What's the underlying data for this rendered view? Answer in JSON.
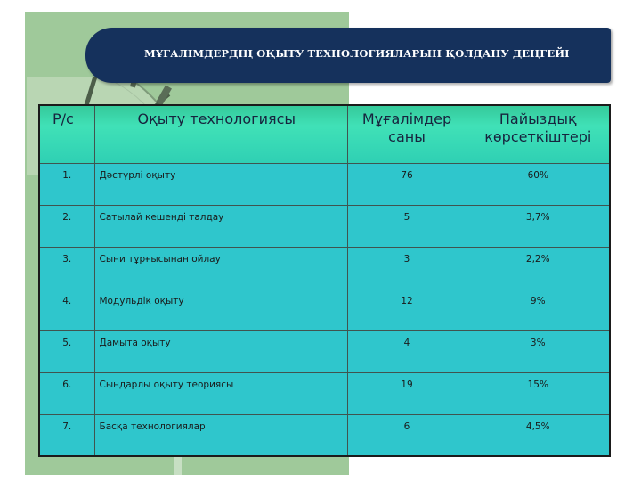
{
  "slide": {
    "title": "МҰҒАЛІМДЕРДІҢ ОҚЫТУ ТЕХНОЛОГИЯЛАРЫН ҚОЛДАНУ ДЕҢГЕЙІ"
  },
  "table": {
    "headers": [
      "Р/с",
      "Оқыту технологиясы",
      "Мұғалімдер саны",
      "Пайыздық көрсеткіштері"
    ],
    "rows": [
      [
        "1.",
        "Дәстүрлі оқыту",
        "76",
        "60%"
      ],
      [
        "2.",
        "Сатылай кешенді талдау",
        "5",
        "3,7%"
      ],
      [
        "3.",
        "Сыни тұрғысынан ойлау",
        "3",
        "2,2%"
      ],
      [
        "4.",
        "Модульдік оқыту",
        "12",
        "9%"
      ],
      [
        "5.",
        "Дамыта оқыту",
        "4",
        "3%"
      ],
      [
        "6.",
        "Сындарлы оқыту теориясы",
        "19",
        "15%"
      ],
      [
        "7.",
        "Басқа технологиялар",
        "6",
        "4,5%"
      ]
    ]
  },
  "colors": {
    "banner": "#15315c",
    "header_fill": "#40e1b7",
    "cell_fill": "#2fc6cc",
    "side_panel": "#9fc99a"
  }
}
